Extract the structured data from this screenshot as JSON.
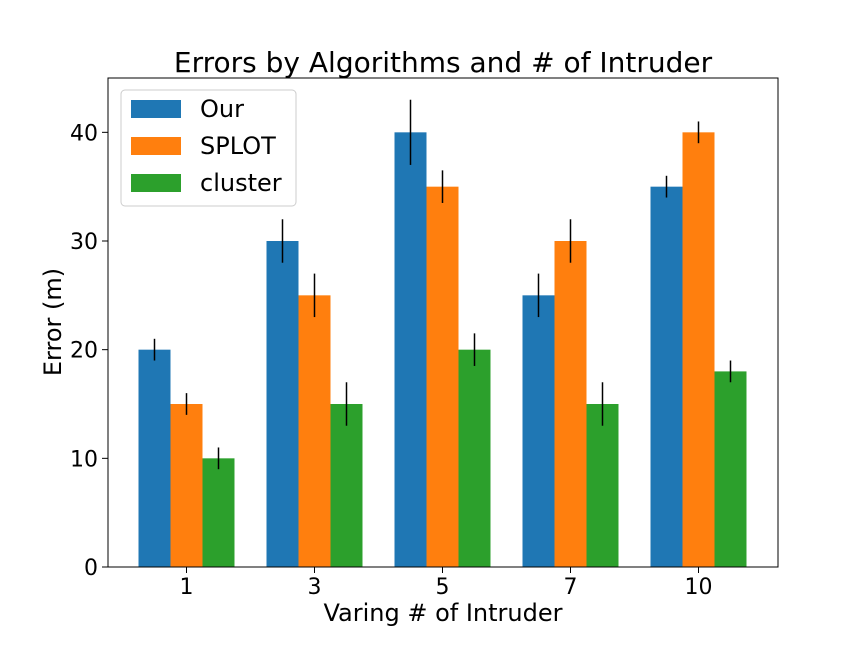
{
  "chart_data": {
    "type": "bar",
    "title": "Errors by Algorithms and # of Intruder",
    "xlabel": "Varing # of Intruder",
    "ylabel": "Error (m)",
    "categories": [
      "1",
      "3",
      "5",
      "7",
      "10"
    ],
    "ylim": [
      0,
      45
    ],
    "yticks": [
      "0",
      "10",
      "20",
      "30",
      "40"
    ],
    "grid": false,
    "legend_position": "top-left",
    "series": [
      {
        "name": "Our",
        "color": "#1f77b4",
        "values": [
          20,
          30,
          40,
          25,
          35
        ],
        "errors": [
          1,
          2,
          3,
          2,
          1
        ]
      },
      {
        "name": "SPLOT",
        "color": "#ff7f0e",
        "values": [
          15,
          25,
          35,
          30,
          40
        ],
        "errors": [
          1,
          2,
          1.5,
          2,
          1
        ]
      },
      {
        "name": "cluster",
        "color": "#2ca02c",
        "values": [
          10,
          15,
          20,
          15,
          18
        ],
        "errors": [
          1,
          2,
          1.5,
          2,
          1
        ]
      }
    ]
  }
}
